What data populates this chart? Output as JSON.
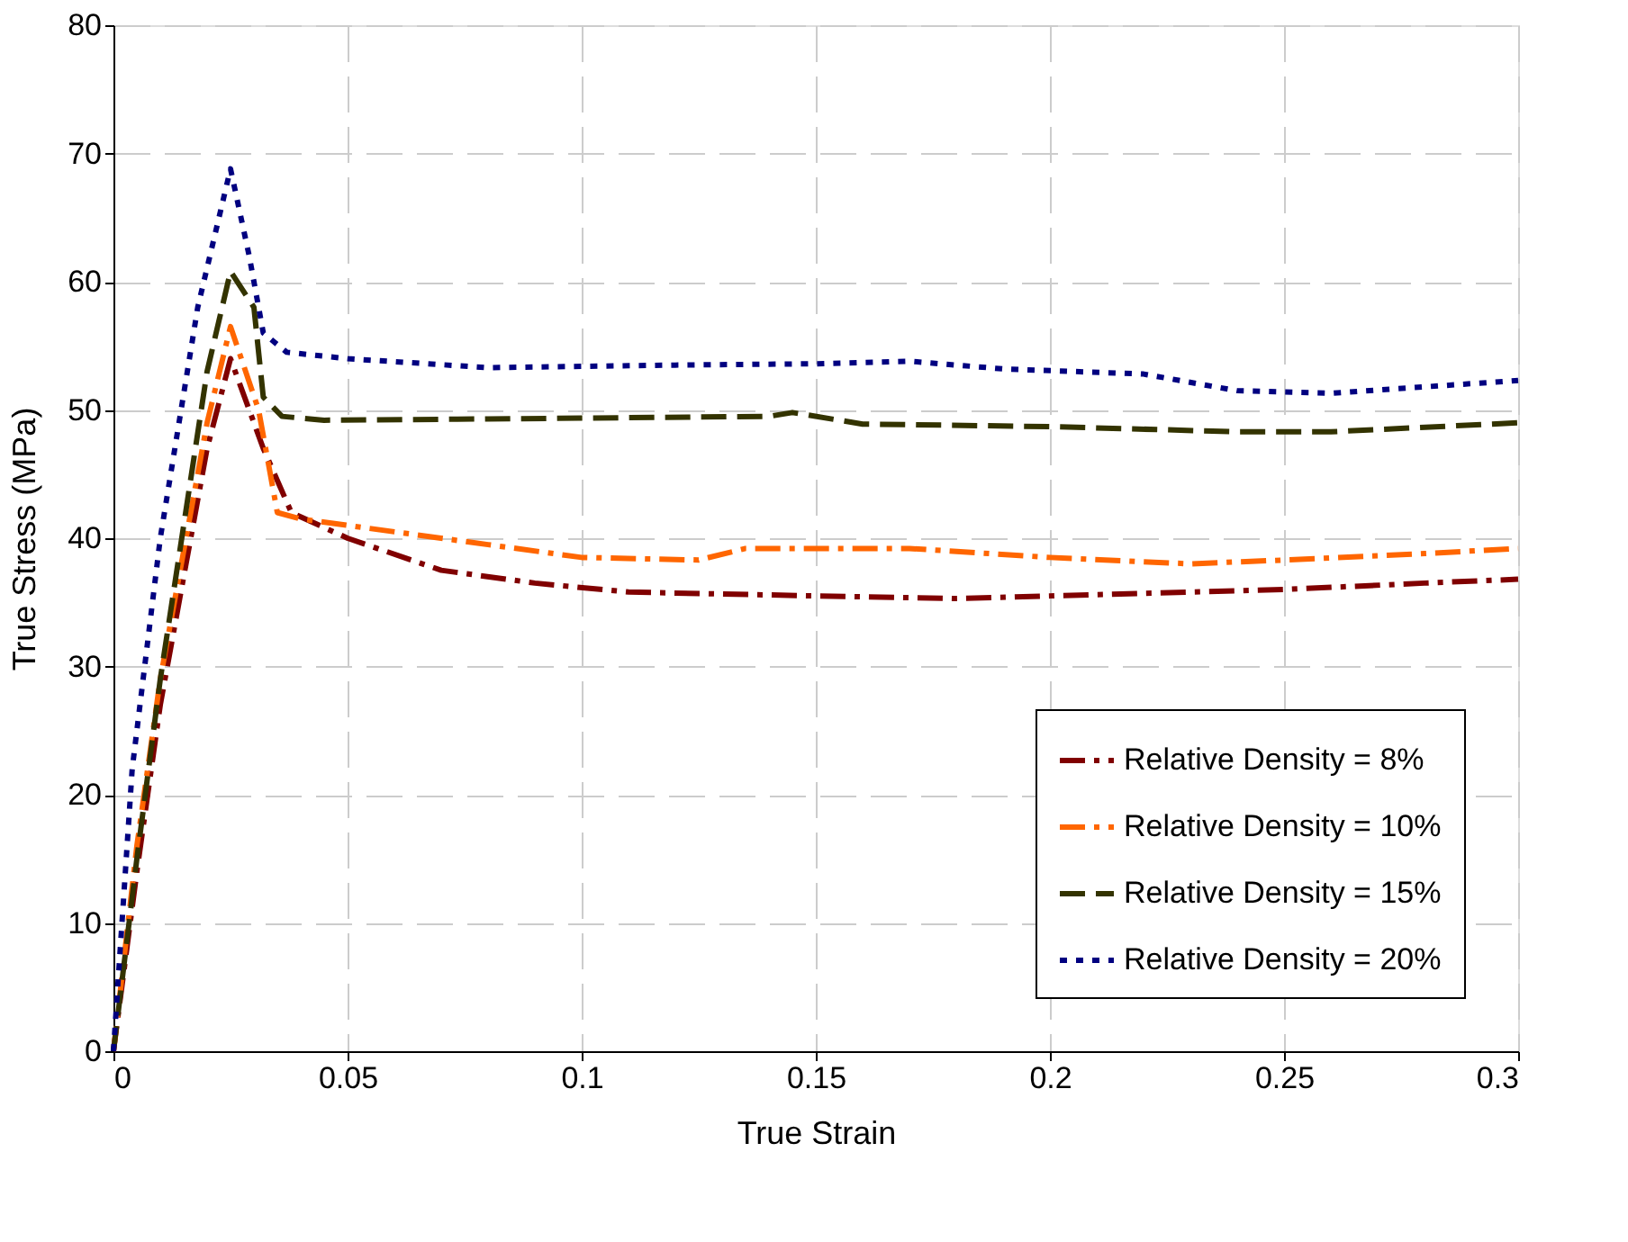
{
  "chart_data": {
    "type": "line",
    "xlabel": "True Strain",
    "ylabel": "True Stress (MPa)",
    "xlim": [
      0,
      0.3
    ],
    "ylim": [
      0,
      80
    ],
    "xticks": [
      0,
      0.05,
      0.1,
      0.15,
      0.2,
      0.25,
      0.3
    ],
    "yticks": [
      0,
      10,
      20,
      30,
      40,
      50,
      60,
      70,
      80
    ],
    "grid": true,
    "legend": "bottom right",
    "marker": "none",
    "series": [
      {
        "name": "Relative Density = 8%",
        "color": "#800000",
        "line_style": "dashdot",
        "x": [
          0,
          0.005,
          0.01,
          0.015,
          0.02,
          0.025,
          0.032,
          0.038,
          0.05,
          0.07,
          0.09,
          0.11,
          0.15,
          0.18,
          0.2,
          0.22,
          0.25,
          0.28,
          0.3
        ],
        "values": [
          0,
          14,
          27,
          37,
          47,
          54,
          47,
          42,
          40,
          37.5,
          36.5,
          35.8,
          35.5,
          35.3,
          35.5,
          35.7,
          36,
          36.5,
          36.8
        ]
      },
      {
        "name": "Relative Density = 10%",
        "color": "#ff6600",
        "line_style": "dashdot",
        "x": [
          0,
          0.005,
          0.01,
          0.015,
          0.02,
          0.025,
          0.031,
          0.035,
          0.04,
          0.06,
          0.08,
          0.1,
          0.125,
          0.135,
          0.17,
          0.2,
          0.23,
          0.25,
          0.28,
          0.3
        ],
        "values": [
          0,
          16,
          29,
          39,
          49,
          56.5,
          50,
          42,
          41.5,
          40.5,
          39.5,
          38.5,
          38.3,
          39.2,
          39.2,
          38.5,
          38,
          38.3,
          38.8,
          39.2
        ]
      },
      {
        "name": "Relative Density = 15%",
        "color": "#333300",
        "line_style": "dashed",
        "x": [
          0,
          0.005,
          0.01,
          0.015,
          0.02,
          0.025,
          0.03,
          0.032,
          0.036,
          0.045,
          0.08,
          0.14,
          0.145,
          0.16,
          0.2,
          0.24,
          0.26,
          0.3
        ],
        "values": [
          0,
          15,
          29,
          41,
          53,
          60.8,
          58,
          51,
          49.5,
          49.2,
          49.3,
          49.5,
          49.8,
          48.9,
          48.7,
          48.3,
          48.3,
          49
        ]
      },
      {
        "name": "Relative Density = 20%",
        "color": "#000080",
        "line_style": "dotted",
        "x": [
          0,
          0.004,
          0.01,
          0.018,
          0.025,
          0.029,
          0.032,
          0.037,
          0.05,
          0.08,
          0.12,
          0.15,
          0.17,
          0.19,
          0.22,
          0.24,
          0.26,
          0.28,
          0.3
        ],
        "values": [
          0,
          22,
          40,
          58,
          68.8,
          62,
          56,
          54.5,
          54,
          53.3,
          53.5,
          53.6,
          53.8,
          53.2,
          52.8,
          51.5,
          51.3,
          51.8,
          52.3
        ]
      }
    ]
  }
}
